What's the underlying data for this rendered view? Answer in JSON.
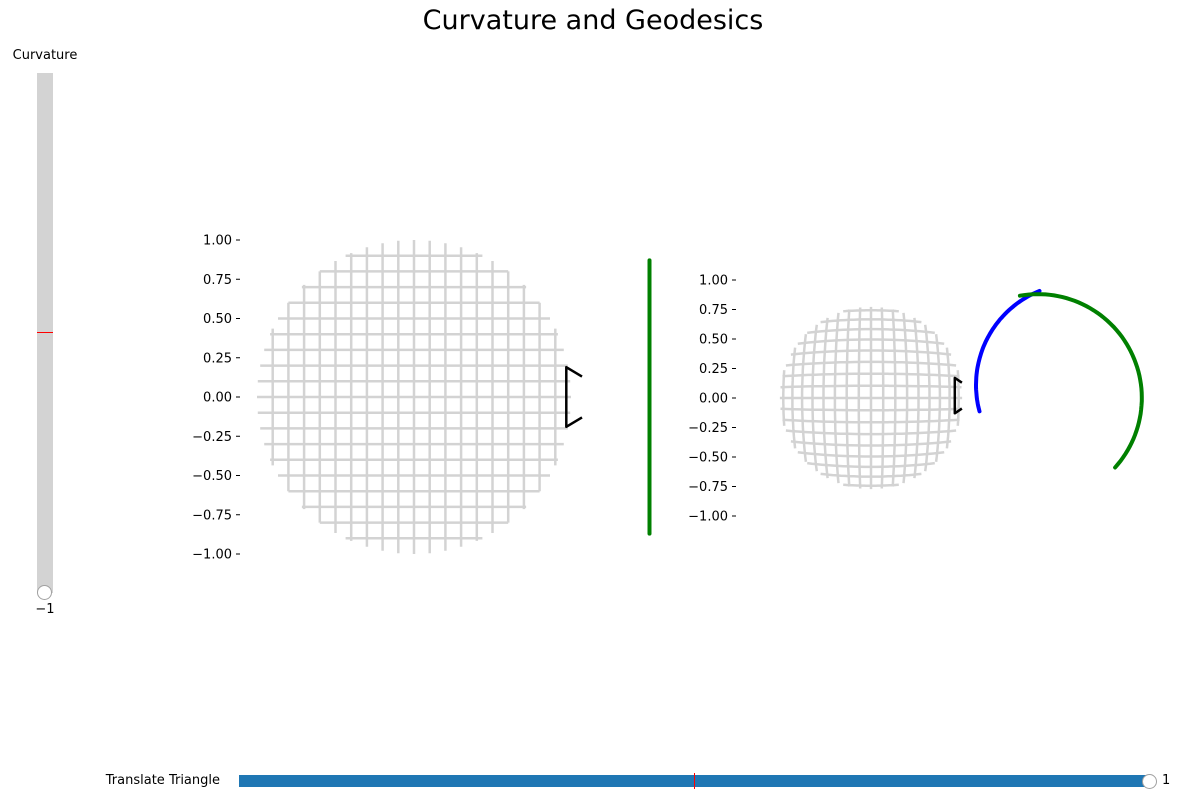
{
  "title": "Curvature and Geodesics",
  "curvature_slider": {
    "label": "Curvature",
    "value": "−1",
    "value_number": -1,
    "min": -1,
    "max": 1,
    "initial": 0
  },
  "translate_slider": {
    "label": "Translate Triangle",
    "value": "1",
    "value_number": 1,
    "min": -1,
    "max": 1,
    "initial": 0
  },
  "colors": {
    "grid": "#d3d3d3",
    "triangle": "#000000",
    "geodesic_a": "#0000ff",
    "geodesic_b": "#008000",
    "slider_track": "#d3d3d3",
    "slider_fill": "#1f77b4",
    "slider_marker": "#ff0000"
  },
  "chart_data": [
    {
      "type": "line",
      "title": "",
      "xlabel": "",
      "ylabel": "",
      "ylim": [
        -1.15,
        1.15
      ],
      "yticks": [
        "1.00",
        "0.75",
        "0.50",
        "0.25",
        "0.00",
        "−0.25",
        "−0.50",
        "−0.75",
        "−1.00"
      ],
      "ytick_values": [
        1,
        0.75,
        0.5,
        0.25,
        0,
        -0.25,
        -0.5,
        -0.75,
        -1
      ],
      "grid_lines": {
        "spacing": 0.1,
        "extent": 1.0,
        "shape": "disk",
        "distortion": 0
      },
      "triangle": [
        [
          1.07,
          0.13
        ],
        [
          0.97,
          0.19
        ],
        [
          0.97,
          -0.19
        ],
        [
          1.07,
          -0.13
        ]
      ],
      "series": [
        {
          "color": "#008000",
          "x": [
            1.5,
            1.5
          ],
          "y": [
            0.87,
            -0.87
          ]
        }
      ]
    },
    {
      "type": "line",
      "title": "",
      "xlabel": "",
      "ylabel": "",
      "ylim": [
        -1.15,
        1.15
      ],
      "yticks": [
        "1.00",
        "0.75",
        "0.50",
        "0.25",
        "0.00",
        "−0.25",
        "−0.50",
        "−0.75",
        "−1.00"
      ],
      "ytick_values": [
        1,
        0.75,
        0.5,
        0.25,
        0,
        -0.25,
        -0.5,
        -0.75,
        -1
      ],
      "grid_lines": {
        "spacing": 0.1,
        "extent": 0.84,
        "shape": "disk",
        "distortion": 0.18
      },
      "triangle": [
        [
          0.77,
          0.13
        ],
        [
          0.71,
          0.17
        ],
        [
          0.71,
          -0.13
        ],
        [
          0.77,
          -0.09
        ]
      ],
      "series": [
        {
          "color": "#0000ff",
          "arc": {
            "cx": 1.75,
            "cy": 0.11,
            "r": 0.86,
            "from_deg": 195,
            "to_deg": 112
          }
        },
        {
          "color": "#008000",
          "arc": {
            "cx": 1.415,
            "cy": 0.0,
            "r": 0.88,
            "from_deg": 100,
            "to_deg": -42
          }
        }
      ]
    }
  ]
}
